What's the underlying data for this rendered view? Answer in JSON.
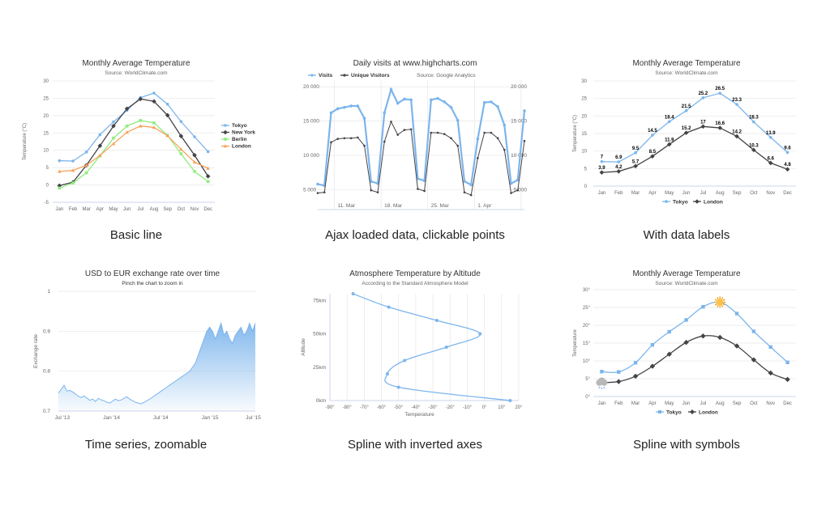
{
  "gallery": {
    "captions": [
      "Basic line",
      "Ajax loaded data, clickable points",
      "With data labels",
      "Time series, zoomable",
      "Spline with inverted axes",
      "Spline with symbols"
    ]
  },
  "chart_data": [
    {
      "type": "line",
      "title": "Monthly Average Temperature",
      "subtitle": "Source: WorldClimate.com",
      "ylabel": "Temperature (°C)",
      "xlabel": "",
      "categories": [
        "Jan",
        "Feb",
        "Mar",
        "Apr",
        "May",
        "Jun",
        "Jul",
        "Aug",
        "Sep",
        "Oct",
        "Nov",
        "Dec"
      ],
      "ylim": [
        -5,
        30
      ],
      "yticks": [
        "-5",
        "0",
        "5",
        "10",
        "15",
        "20",
        "25",
        "30"
      ],
      "legend": "right",
      "grid": true,
      "series": [
        {
          "name": "Tokyo",
          "color": "#7cb5ec",
          "values": [
            7.0,
            6.9,
            9.5,
            14.5,
            18.2,
            21.5,
            25.2,
            26.5,
            23.3,
            18.3,
            13.9,
            9.6
          ]
        },
        {
          "name": "New York",
          "color": "#434348",
          "values": [
            -0.2,
            0.8,
            5.7,
            11.3,
            17.0,
            22.0,
            24.8,
            24.1,
            20.1,
            14.1,
            8.6,
            2.5
          ]
        },
        {
          "name": "Berlin",
          "color": "#90ed7d",
          "values": [
            -0.9,
            0.6,
            3.5,
            8.4,
            13.5,
            17.0,
            18.6,
            17.9,
            14.3,
            9.0,
            3.9,
            1.0
          ]
        },
        {
          "name": "London",
          "color": "#f7a35c",
          "values": [
            3.9,
            4.2,
            5.7,
            8.5,
            11.9,
            15.2,
            17.0,
            16.6,
            14.2,
            10.3,
            6.6,
            4.8
          ]
        }
      ]
    },
    {
      "type": "line",
      "title": "Daily visits at www.highcharts.com",
      "subtitle": "Source: Google Analytics",
      "xlabel": "",
      "ylabel": "",
      "ylim": [
        3500,
        20500
      ],
      "yticks": [
        "5 000",
        "10 000",
        "15 000",
        "20 000"
      ],
      "xticks": [
        "11. Mar",
        "18. Mar",
        "25. Mar",
        "1. Apr"
      ],
      "legend": "top-left",
      "grid": true,
      "series": [
        {
          "name": "Visits",
          "color": "#7cb5ec",
          "values": [
            5800,
            5600,
            16200,
            16800,
            17000,
            17200,
            17200,
            15400,
            6200,
            5900,
            16200,
            19600,
            17600,
            18200,
            18100,
            6600,
            6300,
            18100,
            18300,
            17800,
            17000,
            15100,
            6200,
            5700,
            12400,
            17700,
            17800,
            17100,
            14400,
            5900,
            6400,
            16500
          ]
        },
        {
          "name": "Unique Visitors",
          "color": "#434348",
          "values": [
            4500,
            4600,
            11900,
            12400,
            12500,
            12500,
            12600,
            11400,
            4900,
            4600,
            12000,
            14900,
            13000,
            13700,
            13800,
            5100,
            4800,
            13300,
            13300,
            13100,
            12500,
            11400,
            4600,
            4200,
            9600,
            13300,
            13300,
            12500,
            10800,
            4500,
            4900,
            12100
          ]
        }
      ]
    },
    {
      "type": "line",
      "title": "Monthly Average Temperature",
      "subtitle": "Source: WorldClimate.com",
      "ylabel": "Temperature (°C)",
      "xlabel": "",
      "categories": [
        "Jan",
        "Feb",
        "Mar",
        "Apr",
        "May",
        "Jun",
        "Jul",
        "Aug",
        "Sep",
        "Oct",
        "Nov",
        "Dec"
      ],
      "ylim": [
        0,
        30
      ],
      "yticks": [
        "0",
        "5",
        "10",
        "15",
        "20",
        "25",
        "30"
      ],
      "legend": "bottom",
      "grid": true,
      "data_labels": true,
      "series": [
        {
          "name": "Tokyo",
          "color": "#7cb5ec",
          "values": [
            7.0,
            6.9,
            9.5,
            14.5,
            18.4,
            21.5,
            25.2,
            26.5,
            23.3,
            18.3,
            13.9,
            9.6
          ],
          "labels": [
            "7",
            "6.9",
            "9.5",
            "14.5",
            "18.4",
            "21.5",
            "25.2",
            "26.5",
            "23.3",
            "18.3",
            "13.9",
            "9.6"
          ]
        },
        {
          "name": "London",
          "color": "#434348",
          "values": [
            3.9,
            4.2,
            5.7,
            8.5,
            11.9,
            15.2,
            17.0,
            16.6,
            14.2,
            10.3,
            6.6,
            4.8
          ],
          "labels": [
            "3.9",
            "4.2",
            "5.7",
            "8.5",
            "11.9",
            "15.2",
            "17",
            "16.6",
            "14.2",
            "10.3",
            "6.6",
            "4.8"
          ]
        }
      ]
    },
    {
      "type": "area",
      "title": "USD to EUR exchange rate over time",
      "subtitle": "Pinch the chart to zoom in",
      "ylabel": "Exchange rate",
      "xlabel": "",
      "ylim": [
        0.7,
        1.0
      ],
      "yticks": [
        "0.7",
        "0.8",
        "0.9",
        "1"
      ],
      "xticks": [
        "Jul '13",
        "Jan '14",
        "Jul '14",
        "Jan '15",
        "Jul '15"
      ],
      "legend": "none",
      "grid": true,
      "series": [
        {
          "name": "",
          "color": "#7cb5ec",
          "values": [
            0.745,
            0.755,
            0.765,
            0.75,
            0.752,
            0.748,
            0.743,
            0.737,
            0.734,
            0.738,
            0.733,
            0.727,
            0.73,
            0.724,
            0.732,
            0.728,
            0.726,
            0.722,
            0.72,
            0.725,
            0.73,
            0.726,
            0.728,
            0.732,
            0.736,
            0.73,
            0.726,
            0.722,
            0.72,
            0.718,
            0.722,
            0.726,
            0.73,
            0.735,
            0.74,
            0.745,
            0.75,
            0.755,
            0.76,
            0.765,
            0.77,
            0.775,
            0.78,
            0.785,
            0.79,
            0.795,
            0.8,
            0.81,
            0.82,
            0.84,
            0.86,
            0.88,
            0.9,
            0.91,
            0.9,
            0.88,
            0.9,
            0.92,
            0.89,
            0.9,
            0.88,
            0.87,
            0.89,
            0.9,
            0.91,
            0.89,
            0.9,
            0.92,
            0.9,
            0.92
          ]
        }
      ]
    },
    {
      "type": "line",
      "title": "Atmosphere Temperature by Altitude",
      "subtitle": "According to the Standard Atmosphere Model",
      "xlabel": "Temperature",
      "ylabel": "Altitude",
      "xlim": [
        -90,
        20
      ],
      "ylim": [
        0,
        80
      ],
      "xticks": [
        "-90°",
        "-80°",
        "-70°",
        "-60°",
        "-50°",
        "-40°",
        "-30°",
        "-20°",
        "-10°",
        "0°",
        "10°",
        "20°"
      ],
      "yticks": [
        "0km",
        "25km",
        "50km",
        "75km"
      ],
      "legend": "none",
      "grid": true,
      "series": [
        {
          "name": "",
          "color": "#7cb5ec",
          "points": [
            [
              15,
              0
            ],
            [
              -50,
              10
            ],
            [
              -56.5,
              20
            ],
            [
              -46.5,
              30
            ],
            [
              -22.1,
              40
            ],
            [
              -2.5,
              50
            ],
            [
              -27.7,
              60
            ],
            [
              -55.7,
              70
            ],
            [
              -76.5,
              80
            ]
          ]
        }
      ]
    },
    {
      "type": "line",
      "title": "Monthly Average Temperature",
      "subtitle": "Source: WorldClimate.com",
      "ylabel": "Temperature",
      "xlabel": "",
      "categories": [
        "Jan",
        "Feb",
        "Mar",
        "Apr",
        "May",
        "Jun",
        "Jul",
        "Aug",
        "Sep",
        "Oct",
        "Nov",
        "Dec"
      ],
      "ylim": [
        0,
        30
      ],
      "yticks": [
        "0°",
        "5°",
        "10°",
        "15°",
        "20°",
        "25°",
        "30°"
      ],
      "legend": "bottom",
      "grid": true,
      "series": [
        {
          "name": "Tokyo",
          "color": "#7cb5ec",
          "values": [
            7.0,
            6.9,
            9.5,
            14.5,
            18.2,
            21.5,
            25.2,
            26.5,
            23.3,
            18.3,
            13.9,
            9.6
          ],
          "special_marker": {
            "index": 7,
            "symbol": "sun-icon"
          }
        },
        {
          "name": "London",
          "color": "#434348",
          "values": [
            3.9,
            4.2,
            5.7,
            8.5,
            11.9,
            15.2,
            17.0,
            16.6,
            14.2,
            10.3,
            6.6,
            4.8
          ],
          "special_marker": {
            "index": 0,
            "symbol": "snow-icon"
          }
        }
      ]
    }
  ]
}
